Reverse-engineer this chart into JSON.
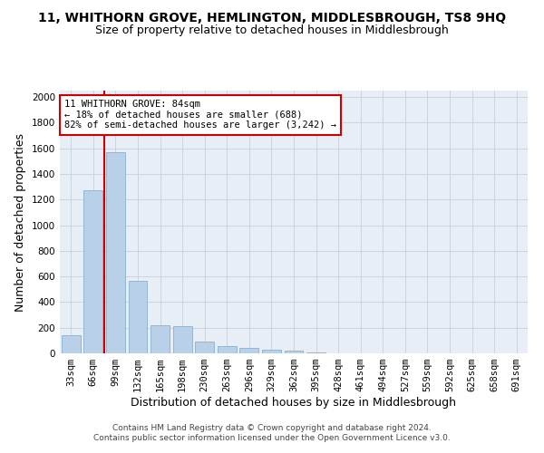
{
  "title": "11, WHITHORN GROVE, HEMLINGTON, MIDDLESBROUGH, TS8 9HQ",
  "subtitle": "Size of property relative to detached houses in Middlesbrough",
  "xlabel": "Distribution of detached houses by size in Middlesbrough",
  "ylabel": "Number of detached properties",
  "footer_line1": "Contains HM Land Registry data © Crown copyright and database right 2024.",
  "footer_line2": "Contains public sector information licensed under the Open Government Licence v3.0.",
  "categories": [
    "33sqm",
    "66sqm",
    "99sqm",
    "132sqm",
    "165sqm",
    "198sqm",
    "230sqm",
    "263sqm",
    "296sqm",
    "329sqm",
    "362sqm",
    "395sqm",
    "428sqm",
    "461sqm",
    "494sqm",
    "527sqm",
    "559sqm",
    "592sqm",
    "625sqm",
    "658sqm",
    "691sqm"
  ],
  "values": [
    140,
    1275,
    1570,
    565,
    220,
    215,
    95,
    55,
    40,
    25,
    20,
    10,
    0,
    0,
    0,
    0,
    0,
    0,
    0,
    0,
    0
  ],
  "bar_color": "#b8d0e8",
  "bar_edge_color": "#8cb0cc",
  "vline_color": "#cc0000",
  "vline_x_index": 2,
  "annotation_line1": "11 WHITHORN GROVE: 84sqm",
  "annotation_line2": "← 18% of detached houses are smaller (688)",
  "annotation_line3": "82% of semi-detached houses are larger (3,242) →",
  "annotation_box_color": "#ffffff",
  "annotation_box_edge": "#cc0000",
  "ylim": [
    0,
    2050
  ],
  "yticks": [
    0,
    200,
    400,
    600,
    800,
    1000,
    1200,
    1400,
    1600,
    1800,
    2000
  ],
  "grid_color": "#c8d0d8",
  "bg_color": "#e8eef5",
  "title_fontsize": 10,
  "subtitle_fontsize": 9,
  "xlabel_fontsize": 9,
  "ylabel_fontsize": 9,
  "tick_fontsize": 7.5,
  "annotation_fontsize": 7.5,
  "footer_fontsize": 6.5
}
